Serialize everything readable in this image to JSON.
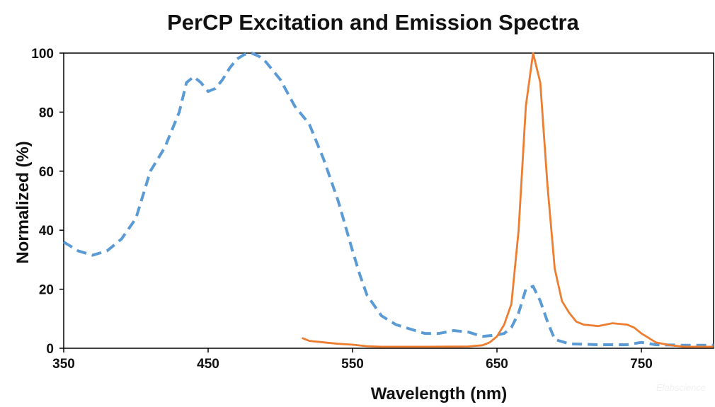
{
  "chart_data": {
    "type": "line",
    "title": "PerCP Excitation and Emission Spectra",
    "xlabel": "Wavelength (nm)",
    "ylabel": "Normalized (%)",
    "xlim": [
      350,
      800
    ],
    "ylim": [
      0,
      100
    ],
    "xticks": [
      350,
      450,
      550,
      650,
      750
    ],
    "yticks": [
      0,
      20,
      40,
      60,
      80,
      100
    ],
    "grid": false,
    "legend": "none",
    "series": [
      {
        "color": "#5b9bd5",
        "dash": "dashed",
        "points": [
          [
            350,
            36
          ],
          [
            360,
            33
          ],
          [
            370,
            31.5
          ],
          [
            380,
            33
          ],
          [
            390,
            37
          ],
          [
            400,
            44
          ],
          [
            410,
            60
          ],
          [
            420,
            68
          ],
          [
            430,
            80
          ],
          [
            435,
            90
          ],
          [
            440,
            92
          ],
          [
            445,
            90
          ],
          [
            450,
            87
          ],
          [
            455,
            88
          ],
          [
            460,
            91
          ],
          [
            465,
            95
          ],
          [
            470,
            98
          ],
          [
            475,
            99.5
          ],
          [
            480,
            100
          ],
          [
            485,
            99
          ],
          [
            490,
            97
          ],
          [
            500,
            91
          ],
          [
            510,
            82
          ],
          [
            520,
            76
          ],
          [
            530,
            64
          ],
          [
            540,
            50
          ],
          [
            550,
            33
          ],
          [
            555,
            25
          ],
          [
            560,
            18
          ],
          [
            570,
            11
          ],
          [
            580,
            8
          ],
          [
            590,
            6.5
          ],
          [
            600,
            5
          ],
          [
            610,
            5
          ],
          [
            620,
            6
          ],
          [
            630,
            5.5
          ],
          [
            640,
            4
          ],
          [
            650,
            4.5
          ],
          [
            655,
            5
          ],
          [
            660,
            7
          ],
          [
            665,
            12
          ],
          [
            670,
            20
          ],
          [
            675,
            21
          ],
          [
            680,
            16
          ],
          [
            685,
            9
          ],
          [
            690,
            3
          ],
          [
            700,
            1.5
          ],
          [
            720,
            1.2
          ],
          [
            740,
            1.2
          ],
          [
            750,
            2
          ],
          [
            760,
            1.2
          ],
          [
            780,
            1
          ],
          [
            800,
            1
          ]
        ]
      },
      {
        "color": "#ed7d31",
        "dash": "solid",
        "points": [
          [
            515,
            3.5
          ],
          [
            520,
            2.5
          ],
          [
            530,
            2
          ],
          [
            540,
            1.5
          ],
          [
            550,
            1.2
          ],
          [
            560,
            0.7
          ],
          [
            570,
            0.5
          ],
          [
            600,
            0.5
          ],
          [
            630,
            0.6
          ],
          [
            640,
            1
          ],
          [
            645,
            2
          ],
          [
            650,
            4
          ],
          [
            655,
            8
          ],
          [
            660,
            15
          ],
          [
            665,
            40
          ],
          [
            670,
            82
          ],
          [
            675,
            100
          ],
          [
            680,
            90
          ],
          [
            685,
            55
          ],
          [
            690,
            27
          ],
          [
            695,
            16
          ],
          [
            700,
            12
          ],
          [
            705,
            9
          ],
          [
            710,
            8
          ],
          [
            720,
            7.5
          ],
          [
            730,
            8.5
          ],
          [
            740,
            8
          ],
          [
            745,
            7
          ],
          [
            750,
            5
          ],
          [
            760,
            2
          ],
          [
            770,
            1
          ],
          [
            780,
            0.5
          ],
          [
            800,
            0.5
          ]
        ]
      }
    ]
  },
  "watermark": "Elabscience"
}
